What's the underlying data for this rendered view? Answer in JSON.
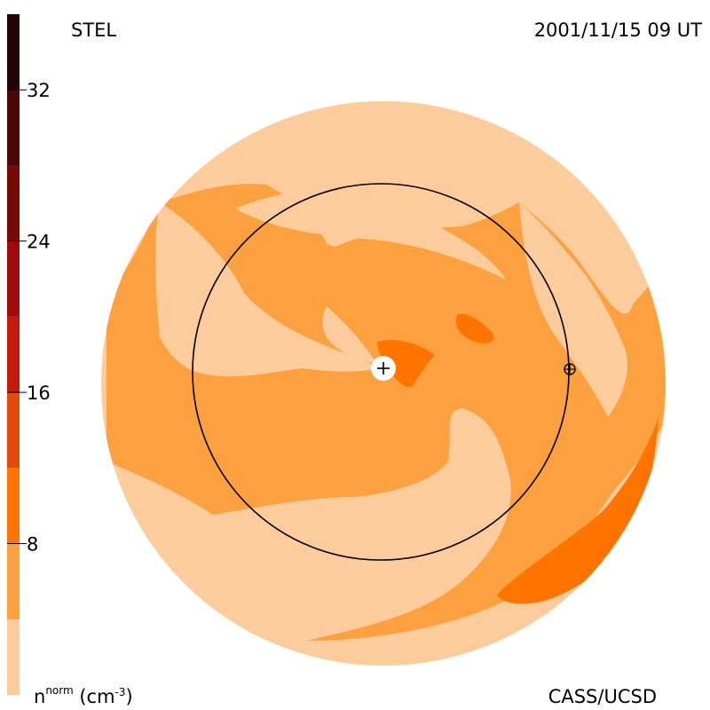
{
  "header": {
    "instrument": "STEL",
    "timestamp": "2001/11/15 09 UT"
  },
  "footer": {
    "units_main": "n",
    "units_sup": "norm",
    "units_rest": " (cm",
    "units_exp": "-3",
    "units_close": ")",
    "credit": "CASS/UCSD"
  },
  "colorbar": {
    "tick_labels": [
      "32",
      "24",
      "16",
      "8"
    ],
    "tick_values": [
      32,
      24,
      16,
      8
    ],
    "range": [
      0,
      36
    ],
    "bands": [
      {
        "from": 0,
        "to": 4,
        "color": "#fdcc9c"
      },
      {
        "from": 4,
        "to": 8,
        "color": "#fda040"
      },
      {
        "from": 8,
        "to": 12,
        "color": "#ff7400"
      },
      {
        "from": 12,
        "to": 16,
        "color": "#e34a0c"
      },
      {
        "from": 16,
        "to": 20,
        "color": "#c41a0c"
      },
      {
        "from": 20,
        "to": 24,
        "color": "#a00c0a"
      },
      {
        "from": 24,
        "to": 28,
        "color": "#780808"
      },
      {
        "from": 28,
        "to": 32,
        "color": "#4c0606"
      },
      {
        "from": 32,
        "to": 36,
        "color": "#220404"
      }
    ]
  },
  "map": {
    "colors": {
      "outer": "#fdcc9c",
      "mid": "#fda040",
      "high": "#ff7400",
      "higher": "#e34a0c",
      "sun": "#ffffff",
      "line": "#000000"
    },
    "markers": {
      "sun_icon": "plus-in-circle-icon",
      "earth_icon": "earth-symbol-icon"
    }
  }
}
